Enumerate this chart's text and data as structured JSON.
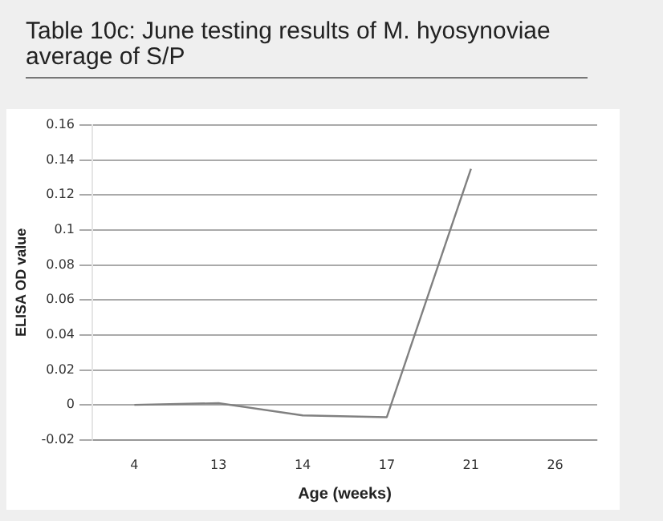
{
  "chart_data": {
    "type": "line",
    "title": "Table 10c: June testing results of M. hyosynoviae",
    "subtitle": "average of S/P",
    "xlabel": "Age (weeks)",
    "ylabel": "ELISA OD value",
    "categories": [
      "4",
      "13",
      "14",
      "17",
      "21",
      "26"
    ],
    "series": [
      {
        "color": "#808080",
        "values": [
          0,
          0.001,
          -0.006,
          -0.007,
          0.135,
          null
        ]
      }
    ],
    "ylim": [
      -0.02,
      0.16
    ],
    "yticks": [
      {
        "value": -0.02,
        "label": "-0.02"
      },
      0,
      0.02,
      0.04,
      0.06,
      0.08,
      {
        "value": 0.1,
        "label": "0.1"
      },
      0.12,
      0.14,
      0.16
    ],
    "grid": "y",
    "legend": false,
    "marker": "none",
    "line_style": "solid"
  }
}
